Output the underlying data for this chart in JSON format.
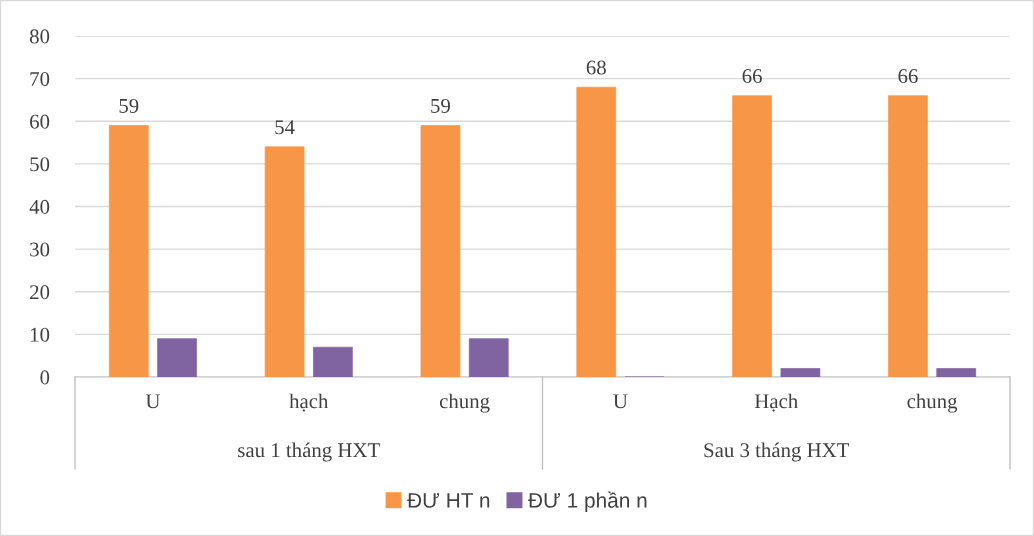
{
  "chart_data": {
    "type": "bar",
    "categories": [
      "U",
      "hạch",
      "chung",
      "U",
      "Hạch",
      "chung"
    ],
    "series": [
      {
        "name": "ĐƯ HT n",
        "color": "#f79646",
        "values": [
          59,
          54,
          59,
          68,
          66,
          66
        ],
        "value_labels": [
          "59",
          "54",
          "59",
          "68",
          "66",
          "66"
        ]
      },
      {
        "name": "ĐƯ 1 phần n",
        "color": "#8064a2",
        "values": [
          9,
          7,
          9,
          0,
          2,
          2
        ]
      }
    ],
    "annotations": [
      "sau 1 tháng HXT",
      "Sau 3 tháng HXT"
    ],
    "ylim": [
      0,
      80
    ],
    "yticks": [
      0,
      10,
      20,
      30,
      40,
      50,
      60,
      70,
      80
    ],
    "grid": "y",
    "legend": "bottom"
  }
}
